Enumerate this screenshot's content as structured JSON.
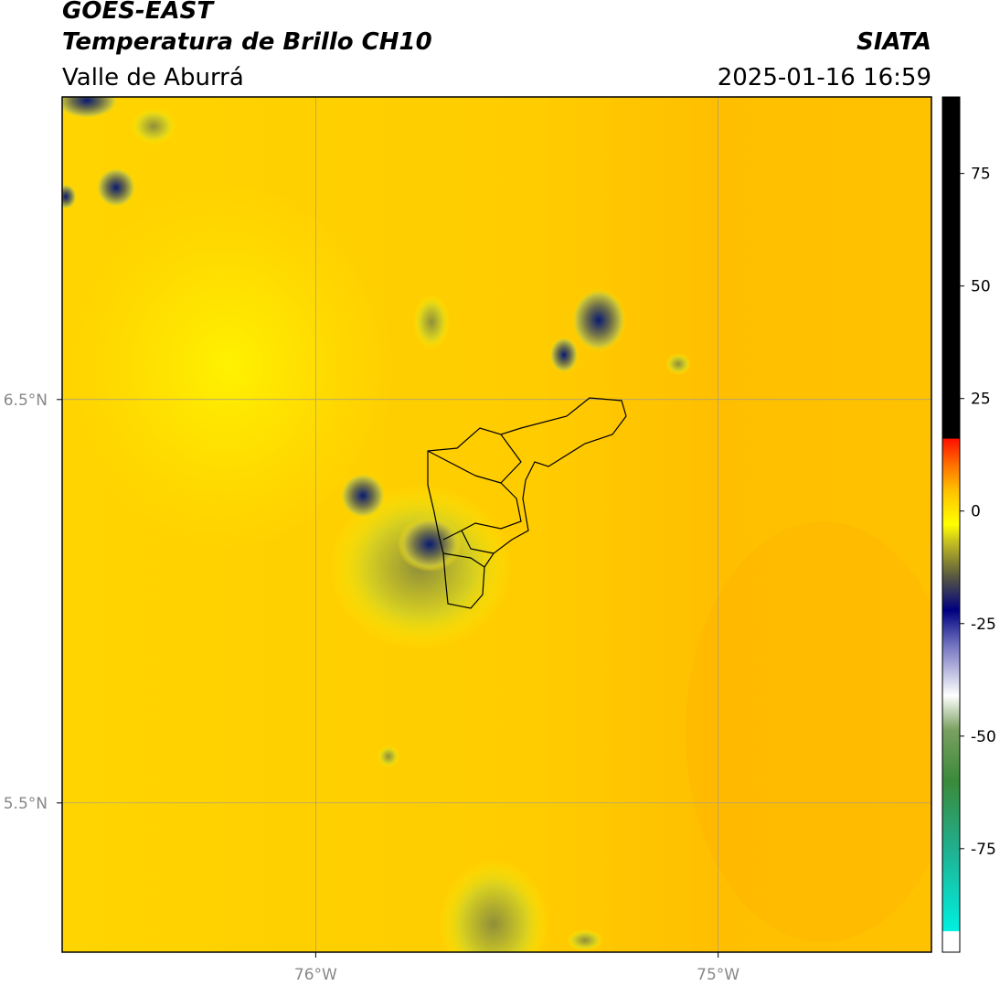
{
  "header": {
    "title": "GOES-EAST",
    "subtitle": "Temperatura de Brillo CH10",
    "region": "Valle de Aburrá",
    "source": "SIATA",
    "datetime": "2025-01-16 16:59"
  },
  "map": {
    "lonlim": [
      -76.63,
      -74.47
    ],
    "latlim": [
      5.13,
      7.25
    ],
    "lat_ticks": [
      {
        "value": 6.5,
        "label": "6.5°N"
      },
      {
        "value": 5.5,
        "label": "5.5°N"
      }
    ],
    "lon_ticks": [
      {
        "value": -76,
        "label": "76°W"
      },
      {
        "value": -75,
        "label": "75°W"
      }
    ]
  },
  "colorbar": {
    "lim": [
      -98,
      92
    ],
    "ticks": [
      75,
      50,
      25,
      0,
      -25,
      -50,
      -75
    ]
  }
}
